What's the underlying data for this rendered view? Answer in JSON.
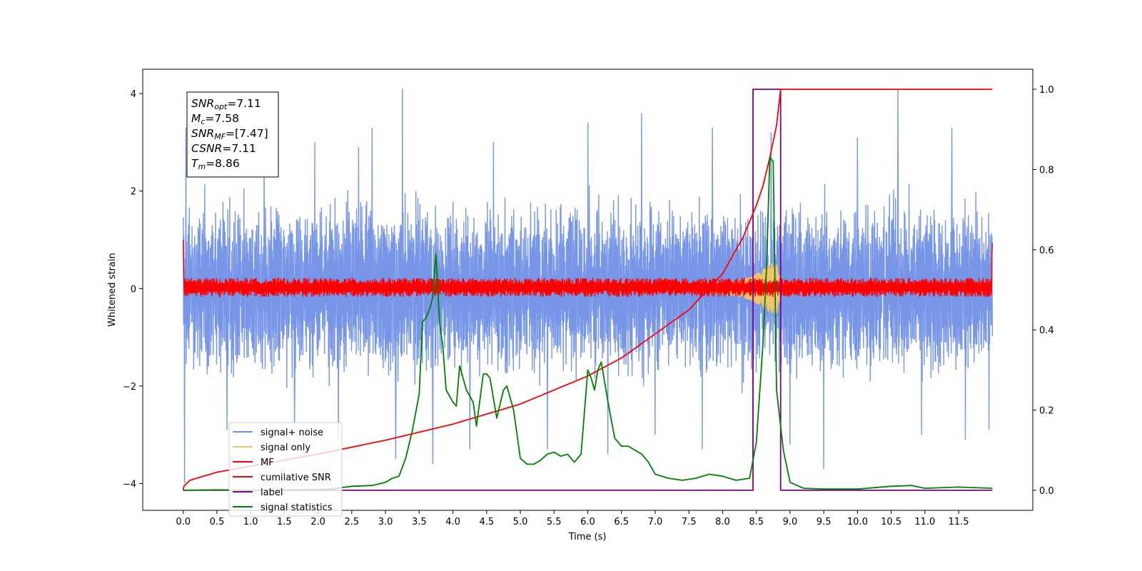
{
  "chart_data": {
    "type": "line",
    "xlabel": "Time (s)",
    "ylabel": "Whitened strain",
    "xlim": [
      -0.6,
      12.6
    ],
    "ylim": [
      -4.55,
      4.5
    ],
    "y2lim": [
      -0.05,
      1.05
    ],
    "x_ticks": [
      "0.0",
      "0.5",
      "1.0",
      "1.5",
      "2.0",
      "2.5",
      "3.0",
      "3.5",
      "4.0",
      "4.5",
      "5.0",
      "5.5",
      "6.0",
      "6.5",
      "7.0",
      "7.5",
      "8.0",
      "8.5",
      "9.0",
      "9.5",
      "10.0",
      "10.5",
      "11.0",
      "11.5"
    ],
    "y_ticks": [
      "4",
      "2",
      "0",
      "−2",
      "−4"
    ],
    "y2_ticks": [
      "1.0",
      "0.8",
      "0.6",
      "0.4",
      "0.2",
      "0.0"
    ],
    "colors": {
      "signal_noise": "#7090e6",
      "signal_only": "#f2c36b",
      "mf": "#ff0000",
      "cumulative_snr": "#ff0000",
      "label": "#800080",
      "signal_statistics": "#008000"
    },
    "annotation": {
      "snr_opt": "=7.11",
      "mc": "=7.58",
      "snr_mf": "=[7.47]",
      "csnr": "=7.11",
      "tm": "=8.86"
    },
    "legend": [
      {
        "key": "signal_noise",
        "label": "signal+ noise"
      },
      {
        "key": "signal_only",
        "label": "signal only"
      },
      {
        "key": "mf",
        "label": "MF"
      },
      {
        "key": "cumulative_snr",
        "label": "cumilative SNR"
      },
      {
        "key": "label",
        "label": "label"
      },
      {
        "key": "signal_statistics",
        "label": "signal statistics"
      }
    ],
    "series": [
      {
        "key": "signal_noise",
        "description": "noise band",
        "t_range": [
          0.0,
          12.0
        ],
        "band": [
          -2.0,
          2.0
        ],
        "spikes": [
          [
            0.02,
            -4.0
          ],
          [
            0.04,
            3.3
          ],
          [
            0.65,
            -2.9
          ],
          [
            1.2,
            2.9
          ],
          [
            1.65,
            -2.8
          ],
          [
            1.95,
            3.0
          ],
          [
            2.3,
            -3.1
          ],
          [
            2.6,
            2.9
          ],
          [
            2.8,
            3.3
          ],
          [
            3.15,
            -3.5
          ],
          [
            3.25,
            4.1
          ],
          [
            3.7,
            -3.6
          ],
          [
            4.25,
            -3.3
          ],
          [
            4.6,
            3.0
          ],
          [
            5.4,
            -3.3
          ],
          [
            6.0,
            3.4
          ],
          [
            6.3,
            -3.4
          ],
          [
            6.8,
            3.6
          ],
          [
            7.0,
            -3.0
          ],
          [
            7.7,
            -3.3
          ],
          [
            7.85,
            3.3
          ],
          [
            8.45,
            -3.9
          ],
          [
            8.72,
            3.2
          ],
          [
            9.0,
            -3.2
          ],
          [
            9.5,
            -3.7
          ],
          [
            10.0,
            3.1
          ],
          [
            10.6,
            4.1
          ],
          [
            10.95,
            -3.0
          ],
          [
            11.4,
            3.3
          ],
          [
            11.6,
            -3.1
          ],
          [
            11.95,
            -2.9
          ]
        ]
      },
      {
        "key": "signal_only",
        "description": "chirp envelope",
        "envelope": [
          [
            7.5,
            0.05
          ],
          [
            8.0,
            0.12
          ],
          [
            8.3,
            0.18
          ],
          [
            8.5,
            0.3
          ],
          [
            8.6,
            0.4
          ],
          [
            8.7,
            0.5
          ],
          [
            8.8,
            0.55
          ],
          [
            8.86,
            0.15
          ],
          [
            8.9,
            0.0
          ]
        ]
      },
      {
        "key": "mf",
        "description": "MF noise band",
        "t_range": [
          0.0,
          12.0
        ],
        "band": [
          -0.17,
          0.22
        ]
      },
      {
        "key": "cumulative_snr",
        "axis": "right",
        "points": [
          [
            0.0,
            0.0
          ],
          [
            0.01,
            0.01
          ],
          [
            0.1,
            0.025
          ],
          [
            0.5,
            0.045
          ],
          [
            1.0,
            0.06
          ],
          [
            2.0,
            0.09
          ],
          [
            3.0,
            0.125
          ],
          [
            4.0,
            0.165
          ],
          [
            5.0,
            0.215
          ],
          [
            6.0,
            0.285
          ],
          [
            6.5,
            0.33
          ],
          [
            7.0,
            0.39
          ],
          [
            7.5,
            0.45
          ],
          [
            8.0,
            0.54
          ],
          [
            8.3,
            0.63
          ],
          [
            8.5,
            0.71
          ],
          [
            8.6,
            0.76
          ],
          [
            8.7,
            0.83
          ],
          [
            8.75,
            0.87
          ],
          [
            8.8,
            0.91
          ],
          [
            8.86,
            1.0
          ],
          [
            12.0,
            1.0
          ]
        ]
      },
      {
        "key": "label",
        "axis": "right",
        "points": [
          [
            0.0,
            0.0
          ],
          [
            8.45,
            0.0
          ],
          [
            8.45,
            1.0
          ],
          [
            8.86,
            1.0
          ],
          [
            8.86,
            0.0
          ],
          [
            12.0,
            0.0
          ]
        ]
      },
      {
        "key": "signal_statistics",
        "axis": "right",
        "points": [
          [
            0.0,
            0.0
          ],
          [
            0.5,
            0.001
          ],
          [
            1.0,
            0.0
          ],
          [
            1.5,
            0.001
          ],
          [
            2.0,
            0.002
          ],
          [
            2.2,
            0.003
          ],
          [
            2.5,
            0.01
          ],
          [
            2.8,
            0.012
          ],
          [
            3.0,
            0.02
          ],
          [
            3.1,
            0.03
          ],
          [
            3.2,
            0.035
          ],
          [
            3.3,
            0.08
          ],
          [
            3.4,
            0.15
          ],
          [
            3.5,
            0.24
          ],
          [
            3.55,
            0.42
          ],
          [
            3.6,
            0.43
          ],
          [
            3.65,
            0.45
          ],
          [
            3.7,
            0.48
          ],
          [
            3.75,
            0.59
          ],
          [
            3.8,
            0.42
          ],
          [
            3.85,
            0.36
          ],
          [
            3.9,
            0.25
          ],
          [
            4.0,
            0.22
          ],
          [
            4.05,
            0.21
          ],
          [
            4.1,
            0.31
          ],
          [
            4.2,
            0.25
          ],
          [
            4.3,
            0.22
          ],
          [
            4.35,
            0.16
          ],
          [
            4.45,
            0.29
          ],
          [
            4.5,
            0.29
          ],
          [
            4.55,
            0.28
          ],
          [
            4.65,
            0.18
          ],
          [
            4.75,
            0.25
          ],
          [
            4.8,
            0.26
          ],
          [
            4.9,
            0.2
          ],
          [
            5.0,
            0.08
          ],
          [
            5.1,
            0.065
          ],
          [
            5.2,
            0.065
          ],
          [
            5.3,
            0.075
          ],
          [
            5.4,
            0.09
          ],
          [
            5.5,
            0.095
          ],
          [
            5.6,
            0.085
          ],
          [
            5.7,
            0.09
          ],
          [
            5.8,
            0.07
          ],
          [
            5.9,
            0.09
          ],
          [
            6.0,
            0.3
          ],
          [
            6.05,
            0.28
          ],
          [
            6.1,
            0.25
          ],
          [
            6.15,
            0.3
          ],
          [
            6.2,
            0.32
          ],
          [
            6.3,
            0.22
          ],
          [
            6.4,
            0.13
          ],
          [
            6.5,
            0.11
          ],
          [
            6.6,
            0.11
          ],
          [
            6.7,
            0.1
          ],
          [
            6.8,
            0.09
          ],
          [
            6.9,
            0.07
          ],
          [
            7.0,
            0.04
          ],
          [
            7.2,
            0.03
          ],
          [
            7.4,
            0.025
          ],
          [
            7.6,
            0.03
          ],
          [
            7.8,
            0.04
          ],
          [
            8.0,
            0.035
          ],
          [
            8.2,
            0.025
          ],
          [
            8.4,
            0.03
          ],
          [
            8.5,
            0.12
          ],
          [
            8.6,
            0.37
          ],
          [
            8.65,
            0.55
          ],
          [
            8.7,
            0.83
          ],
          [
            8.75,
            0.82
          ],
          [
            8.8,
            0.25
          ],
          [
            8.9,
            0.1
          ],
          [
            9.0,
            0.02
          ],
          [
            9.2,
            0.005
          ],
          [
            9.5,
            0.003
          ],
          [
            10.0,
            0.003
          ],
          [
            10.5,
            0.01
          ],
          [
            10.8,
            0.012
          ],
          [
            11.0,
            0.005
          ],
          [
            11.5,
            0.008
          ],
          [
            12.0,
            0.005
          ]
        ]
      }
    ]
  }
}
